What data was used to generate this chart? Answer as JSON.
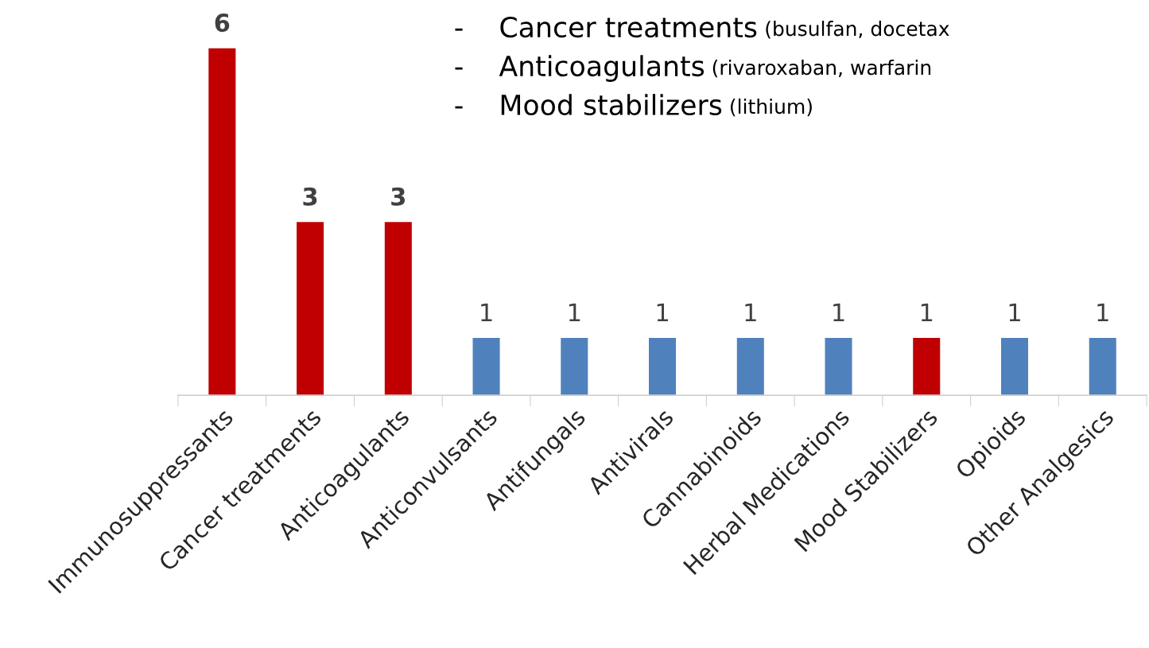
{
  "chart_data": {
    "type": "bar",
    "categories": [
      "Immunosuppressants",
      "Cancer treatments",
      "Anticoagulants",
      "Anticonvulsants",
      "Antifungals",
      "Antivirals",
      "Cannabinoids",
      "Herbal Medications",
      "Mood Stabilizers",
      "Opioids",
      "Other Analgesics"
    ],
    "values": [
      6,
      3,
      3,
      1,
      1,
      1,
      1,
      1,
      1,
      1,
      1
    ],
    "colors": [
      "#c00000",
      "#c00000",
      "#c00000",
      "#4f81bd",
      "#4f81bd",
      "#4f81bd",
      "#4f81bd",
      "#4f81bd",
      "#c00000",
      "#4f81bd",
      "#4f81bd"
    ],
    "data_labels": true,
    "annotations": [
      "-    Cancer treatments (busulfan, docetax",
      "-    Anticoagulants (rivaroxaban, warfarin",
      "-    Mood stabilizers (lithium)"
    ]
  }
}
